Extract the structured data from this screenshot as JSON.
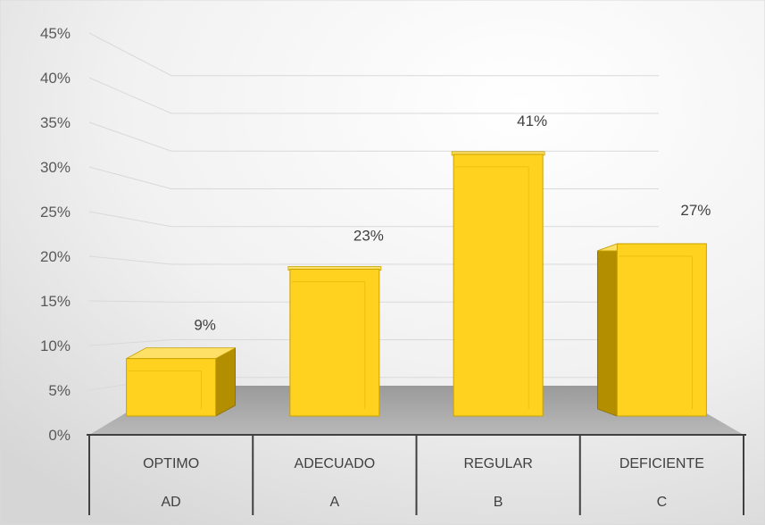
{
  "chart_data": {
    "type": "bar",
    "title": "",
    "xlabel": "",
    "ylabel": "",
    "categories": [
      "OPTIMO",
      "ADECUADO",
      "REGULAR",
      "DEFICIENTE"
    ],
    "category_codes": [
      "AD",
      "A",
      "B",
      "C"
    ],
    "values": [
      9,
      23,
      41,
      27
    ],
    "data_labels": [
      "9%",
      "23%",
      "41%",
      "27%"
    ],
    "ylim": [
      0,
      45
    ],
    "yticks": [
      0,
      5,
      10,
      15,
      20,
      25,
      30,
      35,
      40,
      45
    ],
    "ytick_labels": [
      "0%",
      "5%",
      "10%",
      "15%",
      "20%",
      "25%",
      "30%",
      "35%",
      "40%",
      "45%"
    ],
    "grid": true,
    "legend": "none",
    "colors": {
      "bar": "#ffd21f",
      "bar_top": "#ffe066",
      "bar_side": "#b38f00",
      "floor": "#a6a6a6",
      "background": "#e9e9e9"
    }
  }
}
